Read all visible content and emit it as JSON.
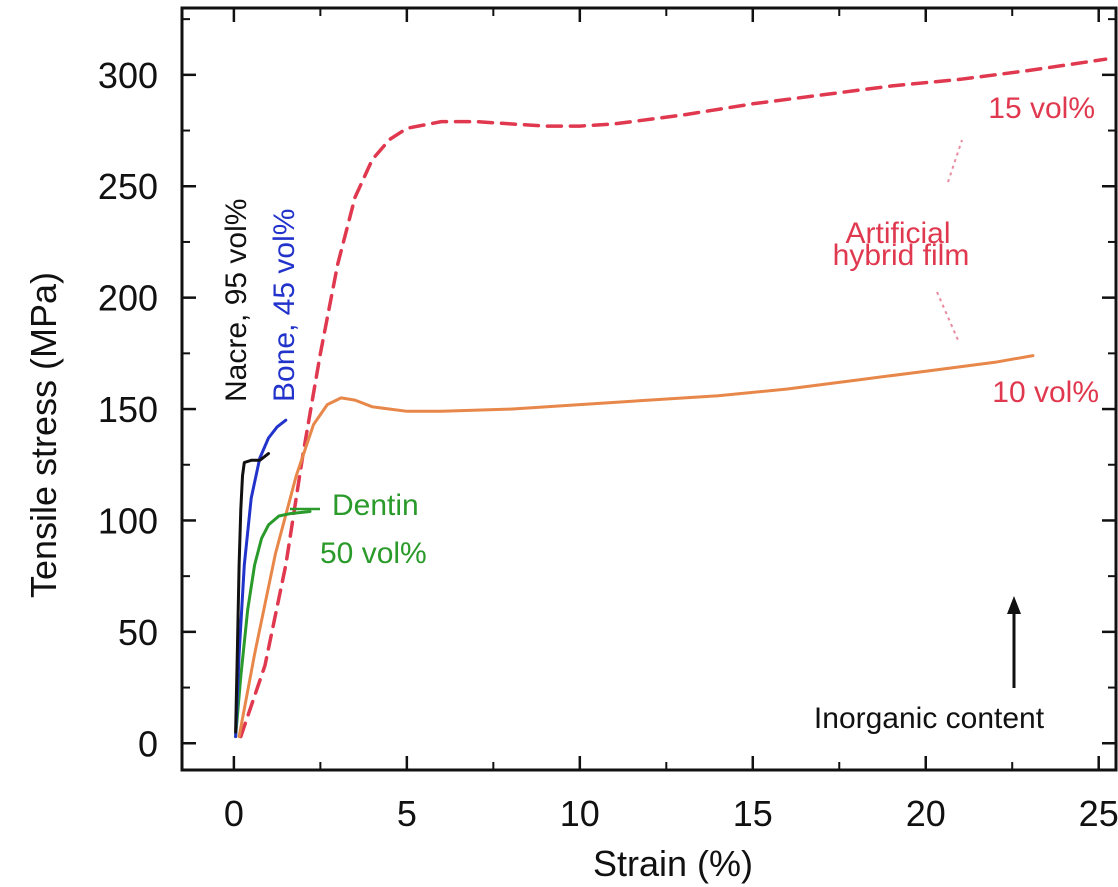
{
  "chart_data": {
    "type": "line",
    "xlabel": "Strain (%)",
    "ylabel": "Tensile stress (MPa)",
    "xlim": [
      -1.5,
      25.5
    ],
    "ylim": [
      -12,
      330
    ],
    "xticks": [
      0,
      5,
      10,
      15,
      20,
      25
    ],
    "xtick_labels": [
      "0",
      "5",
      "10",
      "15",
      "20",
      "25"
    ],
    "yticks": [
      0,
      50,
      100,
      150,
      200,
      250,
      300
    ],
    "ytick_labels": [
      "0",
      "50",
      "100",
      "150",
      "200",
      "250",
      "300"
    ],
    "grid": false,
    "series": [
      {
        "name": "Nacre, 95 vol%",
        "color": "#111111",
        "style": "solid",
        "points": [
          [
            0.05,
            5
          ],
          [
            0.1,
            40
          ],
          [
            0.15,
            80
          ],
          [
            0.2,
            105
          ],
          [
            0.25,
            120
          ],
          [
            0.3,
            126
          ],
          [
            0.5,
            127
          ],
          [
            0.75,
            127
          ],
          [
            1.0,
            130
          ]
        ]
      },
      {
        "name": "Bone, 45 vol%",
        "color": "#2233cc",
        "style": "solid",
        "points": [
          [
            0.05,
            3
          ],
          [
            0.15,
            40
          ],
          [
            0.3,
            80
          ],
          [
            0.5,
            110
          ],
          [
            0.75,
            128
          ],
          [
            1.0,
            137
          ],
          [
            1.25,
            142
          ],
          [
            1.5,
            145
          ]
        ]
      },
      {
        "name": "Dentin 50 vol%",
        "color": "#2a9a2a",
        "style": "solid",
        "points": [
          [
            0.05,
            3
          ],
          [
            0.2,
            30
          ],
          [
            0.4,
            60
          ],
          [
            0.6,
            80
          ],
          [
            0.8,
            92
          ],
          [
            1.0,
            98
          ],
          [
            1.3,
            102
          ],
          [
            1.6,
            103
          ],
          [
            2.2,
            104
          ]
        ]
      },
      {
        "name": "10 vol%",
        "color": "#e8874a",
        "style": "solid",
        "points": [
          [
            0.15,
            3
          ],
          [
            0.6,
            40
          ],
          [
            1.2,
            85
          ],
          [
            1.8,
            120
          ],
          [
            2.3,
            143
          ],
          [
            2.7,
            152
          ],
          [
            3.1,
            155
          ],
          [
            3.5,
            154
          ],
          [
            4.0,
            151
          ],
          [
            5.0,
            149
          ],
          [
            6.0,
            149
          ],
          [
            8.0,
            150
          ],
          [
            10.0,
            152
          ],
          [
            12.0,
            154
          ],
          [
            14.0,
            156
          ],
          [
            16.0,
            159
          ],
          [
            18.0,
            163
          ],
          [
            20.0,
            167
          ],
          [
            22.0,
            171
          ],
          [
            23.1,
            174
          ]
        ]
      },
      {
        "name": "15 vol%",
        "color": "#e0384e",
        "style": "dashed",
        "points": [
          [
            0.2,
            3
          ],
          [
            0.9,
            35
          ],
          [
            1.5,
            80
          ],
          [
            2.0,
            130
          ],
          [
            2.5,
            175
          ],
          [
            3.0,
            215
          ],
          [
            3.5,
            245
          ],
          [
            4.0,
            262
          ],
          [
            4.5,
            271
          ],
          [
            5.0,
            276
          ],
          [
            6.0,
            279
          ],
          [
            7.0,
            279
          ],
          [
            8.0,
            278
          ],
          [
            9.0,
            277
          ],
          [
            10.0,
            277
          ],
          [
            11.0,
            278
          ],
          [
            13.0,
            282
          ],
          [
            15.0,
            287
          ],
          [
            17.0,
            291
          ],
          [
            19.0,
            295
          ],
          [
            21.0,
            298
          ],
          [
            23.0,
            302
          ],
          [
            25.2,
            307
          ]
        ]
      }
    ],
    "annotations": {
      "nacre": "Nacre, 95 vol%",
      "bone": "Bone, 45 vol%",
      "dentin_line1": "Dentin",
      "dentin_line2": "50 vol%",
      "vol15": "15 vol%",
      "artificial_line1": "Artificial",
      "artificial_line2": "hybrid film",
      "vol10": "10 vol%",
      "inorganic": "Inorganic content"
    }
  }
}
